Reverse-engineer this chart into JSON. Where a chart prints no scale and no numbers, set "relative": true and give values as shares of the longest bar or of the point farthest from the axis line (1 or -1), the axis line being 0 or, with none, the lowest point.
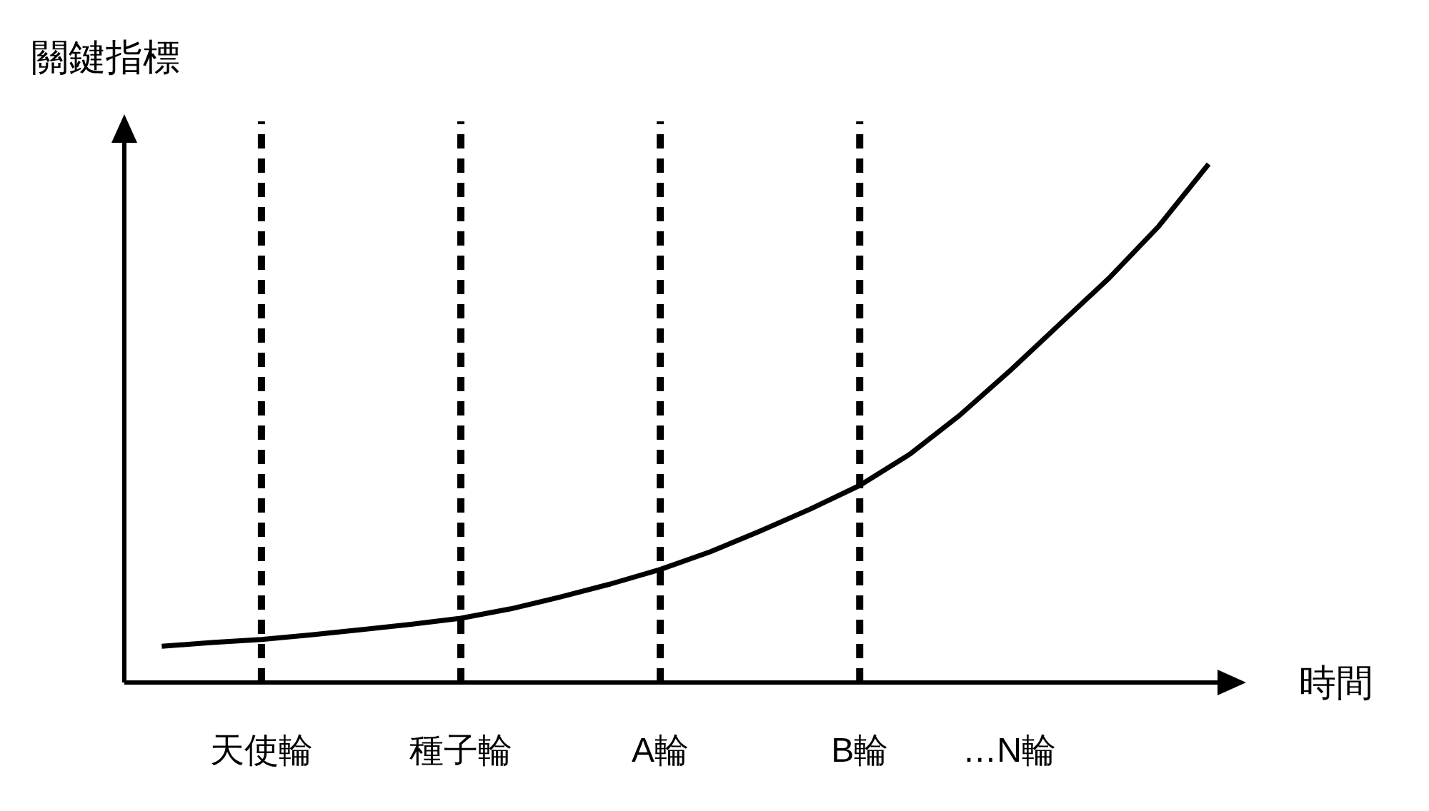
{
  "chart_data": {
    "type": "line",
    "relative": true,
    "xlabel": "時間",
    "ylabel": "關鍵指標",
    "categories": [
      null,
      null,
      "天使輪",
      null,
      null,
      null,
      "種子輪",
      null,
      null,
      null,
      "A輪",
      null,
      null,
      null,
      "B輪",
      null,
      null,
      "…N輪",
      null,
      null,
      null,
      null
    ],
    "series": [
      {
        "color": "#000000",
        "values": [
          0.07,
          0.077,
          0.083,
          0.092,
          0.102,
          0.112,
          0.124,
          0.142,
          0.165,
          0.19,
          0.218,
          0.252,
          0.292,
          0.334,
          0.38,
          0.44,
          0.515,
          0.6,
          0.69,
          0.78,
          0.88,
          1
        ]
      }
    ],
    "ref_lines": [
      {
        "axis": "x",
        "value": "天使輪",
        "line_style": "dashed",
        "color": "#000000"
      },
      {
        "axis": "x",
        "value": "種子輪",
        "line_style": "dashed",
        "color": "#000000"
      },
      {
        "axis": "x",
        "value": "A輪",
        "line_style": "dashed",
        "color": "#000000"
      },
      {
        "axis": "x",
        "value": "B輪",
        "line_style": "dashed",
        "color": "#000000"
      }
    ],
    "grid": false,
    "marker": "none",
    "line_style": "solid"
  }
}
